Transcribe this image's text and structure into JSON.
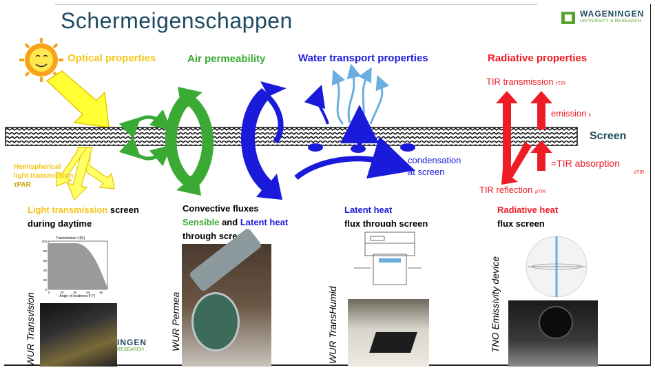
{
  "slide": {
    "title": "Schermeigenschappen",
    "logo": {
      "name": "WAGENINGEN",
      "sub": "UNIVERSITY & RESEARCH"
    }
  },
  "headers": {
    "optical": "Optical properties",
    "air": "Air permeability",
    "water": "Water transport properties",
    "radiative": "Radiative properties"
  },
  "colors": {
    "optical": "#f5c518",
    "air": "#3aaa35",
    "water": "#1a1adb",
    "radiative": "#ee1c25",
    "title": "#1e4a60"
  },
  "screen_label": "Screen",
  "optical": {
    "hemi_line1": "Hemispherical",
    "hemi_line2": "light transmission",
    "hemi_line3": "τPAR",
    "caption_highlight": "Light transmission",
    "caption_rest": " screen",
    "caption_line2": "during daytime",
    "device": "WUR Transvision",
    "chart_title": "Transmission τ [%]",
    "chart_xlabel": "Angle of incidence θ [°]",
    "chart_yticks": [
      "100",
      "80",
      "60",
      "40",
      "20",
      "0"
    ],
    "chart_xticks": [
      "0",
      "20",
      "40",
      "60",
      "80"
    ],
    "photo_logo_text": "INGEN",
    "photo_logo_sub": "RESEARCH"
  },
  "air": {
    "caption_line1": "Convective fluxes",
    "caption_sensible": "Sensible",
    "caption_and": " and ",
    "caption_latent": "Latent heat",
    "caption_line3": "through screen",
    "device": "WUR Permea"
  },
  "water": {
    "condensation_line1": "condensation",
    "condensation_line2": "at screen",
    "caption_highlight": "Latent heat",
    "caption_line2": "flux through screen",
    "device": "WUR TransHumid"
  },
  "radiative": {
    "tir_transmission": "TIR transmission",
    "tir_transmission_sym": "τTIR",
    "emission": "emission",
    "emission_sym": "ε",
    "absorption": "=TIR absorption",
    "absorption_sym": "αTIR",
    "reflection": "TIR reflection",
    "reflection_sym": "ρTIR",
    "caption_highlight": "Radiative heat",
    "caption_line2": "flux screen",
    "device": "TNO Emissivity device"
  }
}
